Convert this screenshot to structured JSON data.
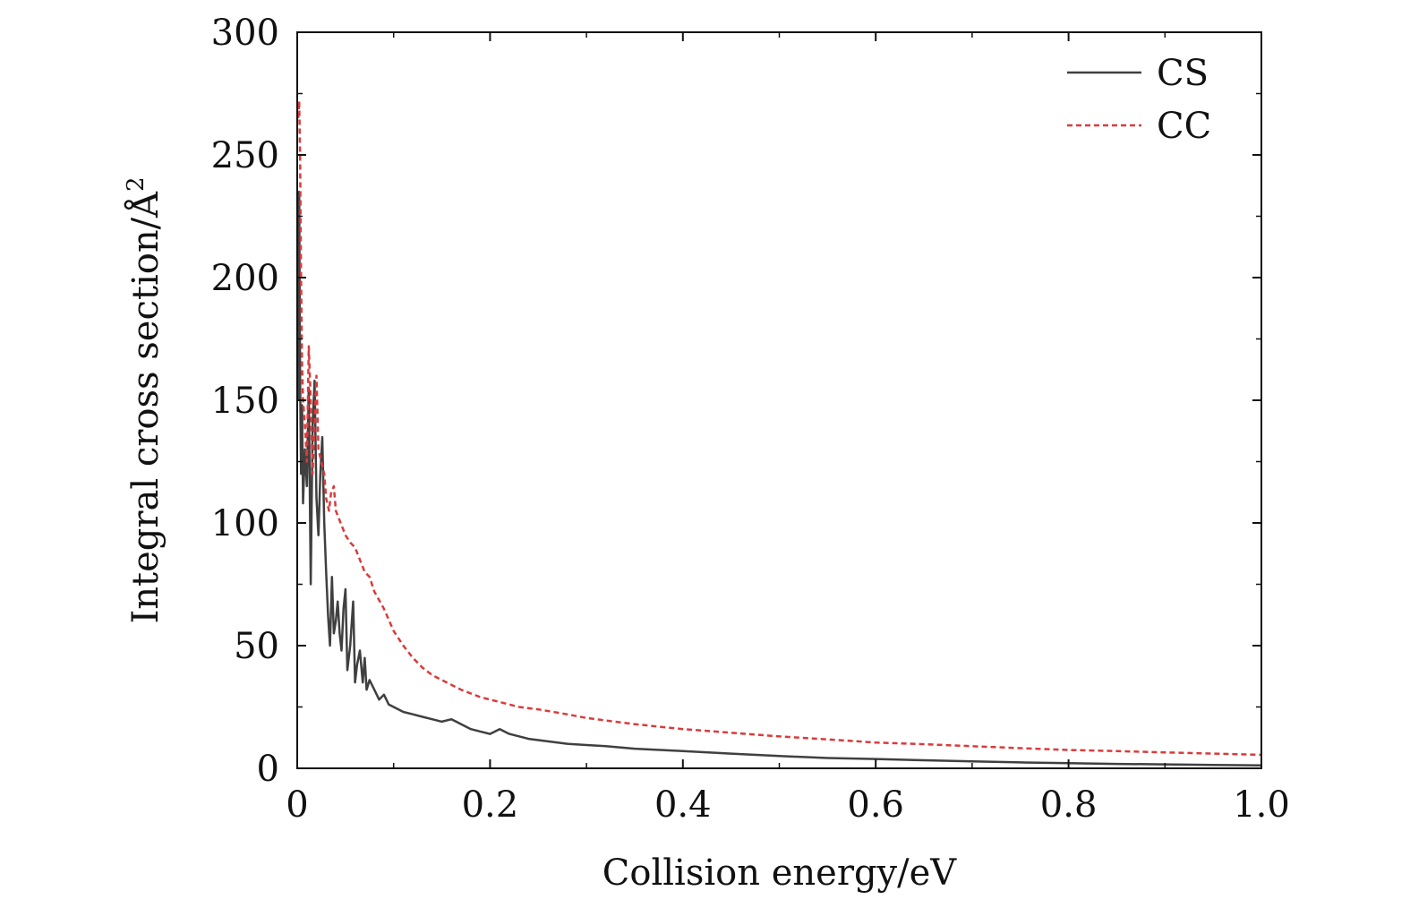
{
  "chart_data": {
    "type": "line",
    "title": "",
    "xlabel": "Collision energy/eV",
    "ylabel": "Integral cross section/Å",
    "ylabel_superscript": "2",
    "xlim": [
      0,
      1.0
    ],
    "ylim": [
      0,
      300
    ],
    "xticks": [
      0,
      0.2,
      0.4,
      0.6,
      0.8,
      1.0
    ],
    "xtick_labels": [
      "0",
      "0.2",
      "0.4",
      "0.6",
      "0.8",
      "1.0"
    ],
    "yticks": [
      0,
      50,
      100,
      150,
      200,
      250,
      300
    ],
    "ytick_labels": [
      "0",
      "50",
      "100",
      "150",
      "200",
      "250",
      "300"
    ],
    "grid": false,
    "legend_position": "top-right",
    "series": [
      {
        "name": "CS",
        "color": "#404040",
        "style": "solid",
        "x": [
          0.001,
          0.002,
          0.003,
          0.004,
          0.005,
          0.006,
          0.008,
          0.01,
          0.012,
          0.014,
          0.016,
          0.018,
          0.02,
          0.022,
          0.024,
          0.026,
          0.028,
          0.03,
          0.032,
          0.034,
          0.036,
          0.038,
          0.04,
          0.042,
          0.044,
          0.046,
          0.048,
          0.05,
          0.052,
          0.055,
          0.058,
          0.06,
          0.062,
          0.065,
          0.068,
          0.07,
          0.072,
          0.075,
          0.08,
          0.085,
          0.09,
          0.095,
          0.1,
          0.11,
          0.12,
          0.13,
          0.14,
          0.15,
          0.16,
          0.17,
          0.18,
          0.19,
          0.2,
          0.21,
          0.22,
          0.24,
          0.26,
          0.28,
          0.3,
          0.32,
          0.35,
          0.4,
          0.45,
          0.5,
          0.55,
          0.6,
          0.65,
          0.7,
          0.75,
          0.8,
          0.85,
          0.9,
          0.95,
          1.0
        ],
        "y": [
          150,
          235,
          160,
          120,
          148,
          108,
          130,
          115,
          155,
          75,
          140,
          158,
          110,
          95,
          120,
          135,
          100,
          80,
          62,
          50,
          78,
          55,
          60,
          68,
          55,
          48,
          65,
          73,
          40,
          50,
          68,
          35,
          42,
          48,
          35,
          45,
          32,
          36,
          32,
          28,
          30,
          26,
          25,
          23,
          22,
          21,
          20,
          19,
          20,
          18,
          16,
          15,
          14,
          16,
          14,
          12,
          11,
          10,
          9.5,
          9,
          8,
          7,
          6,
          5,
          4.2,
          3.8,
          3.3,
          2.8,
          2.4,
          2.1,
          1.8,
          1.6,
          1.4,
          1.2
        ]
      },
      {
        "name": "CC",
        "color": "#d93b3b",
        "style": "dashed",
        "x": [
          0.001,
          0.002,
          0.003,
          0.004,
          0.005,
          0.006,
          0.008,
          0.01,
          0.012,
          0.014,
          0.016,
          0.018,
          0.02,
          0.022,
          0.025,
          0.028,
          0.03,
          0.033,
          0.035,
          0.038,
          0.04,
          0.045,
          0.05,
          0.055,
          0.06,
          0.065,
          0.07,
          0.075,
          0.08,
          0.09,
          0.1,
          0.11,
          0.12,
          0.13,
          0.14,
          0.15,
          0.17,
          0.19,
          0.21,
          0.23,
          0.25,
          0.28,
          0.3,
          0.35,
          0.4,
          0.45,
          0.5,
          0.55,
          0.6,
          0.65,
          0.7,
          0.75,
          0.8,
          0.85,
          0.9,
          0.95,
          1.0
        ],
        "y": [
          265,
          272,
          250,
          200,
          165,
          150,
          140,
          125,
          172,
          150,
          120,
          140,
          160,
          130,
          125,
          120,
          110,
          105,
          112,
          115,
          105,
          100,
          95,
          92,
          90,
          85,
          80,
          78,
          72,
          65,
          56,
          50,
          45,
          41,
          38,
          36,
          32,
          29,
          27,
          25,
          24,
          22,
          20.5,
          18,
          16,
          14.5,
          13,
          11.8,
          10.5,
          9.8,
          9,
          8.2,
          7.5,
          7,
          6.5,
          6,
          5.5
        ]
      }
    ]
  }
}
